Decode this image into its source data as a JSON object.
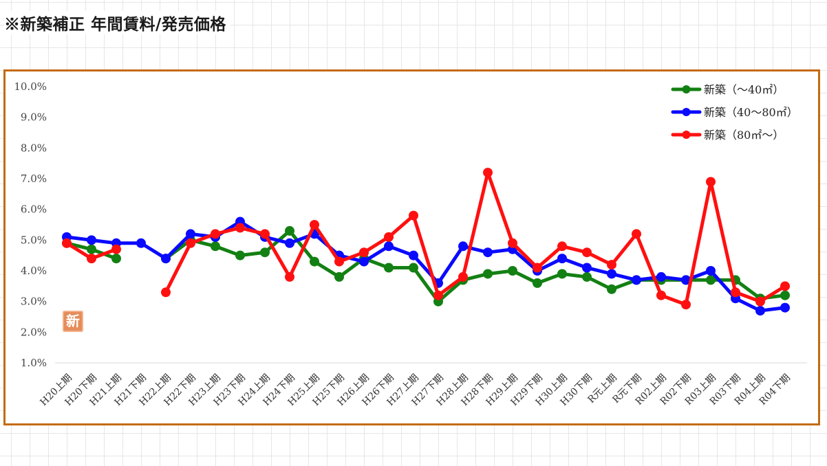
{
  "page": {
    "title": "※新築補正 年間賃料/発売価格"
  },
  "stamp": {
    "text": "新"
  },
  "chart_data": {
    "type": "line",
    "title": "",
    "xlabel": "",
    "ylabel": "",
    "ylim": [
      1.0,
      10.0
    ],
    "y_ticks": [
      "10.0%",
      "9.0%",
      "8.0%",
      "7.0%",
      "6.0%",
      "5.0%",
      "4.0%",
      "3.0%",
      "2.0%",
      "1.0%"
    ],
    "legend_position": "top-right",
    "grid": false,
    "categories": [
      "H20上期",
      "H20下期",
      "H21上期",
      "H21下期",
      "H22上期",
      "H22下期",
      "H23上期",
      "H23下期",
      "H24上期",
      "H24下期",
      "H25上期",
      "H25下期",
      "H26上期",
      "H26下期",
      "H27上期",
      "H27下期",
      "H28上期",
      "H28下期",
      "H29上期",
      "H29下期",
      "H30上期",
      "H30下期",
      "R元上期",
      "R元下期",
      "R02上期",
      "R02下期",
      "R03上期",
      "R03下期",
      "R04上期",
      "R04下期"
    ],
    "series": [
      {
        "name": "新築（～40㎡）",
        "color": "#138013",
        "values": [
          4.9,
          4.7,
          4.4,
          null,
          4.4,
          5.0,
          4.8,
          4.5,
          4.6,
          5.3,
          4.3,
          3.8,
          4.4,
          4.1,
          4.1,
          3.0,
          3.7,
          3.9,
          4.0,
          3.6,
          3.9,
          3.8,
          3.4,
          3.7,
          3.7,
          3.7,
          3.7,
          3.7,
          3.1,
          3.2
        ]
      },
      {
        "name": "新築（40～80㎡）",
        "color": "#0a0aff",
        "values": [
          5.1,
          5.0,
          4.9,
          4.9,
          4.4,
          5.2,
          5.1,
          5.6,
          5.1,
          4.9,
          5.2,
          4.5,
          4.3,
          4.8,
          4.5,
          3.6,
          4.8,
          4.6,
          4.7,
          4.0,
          4.4,
          4.1,
          3.9,
          3.7,
          3.8,
          3.7,
          4.0,
          3.1,
          2.7,
          2.8
        ]
      },
      {
        "name": "新築（80㎡～）",
        "color": "#ff1010",
        "values": [
          4.9,
          4.4,
          4.7,
          null,
          3.3,
          4.9,
          5.2,
          5.4,
          5.2,
          3.8,
          5.5,
          4.3,
          4.6,
          5.1,
          5.8,
          3.2,
          3.8,
          7.2,
          4.9,
          4.1,
          4.8,
          4.6,
          4.2,
          5.2,
          3.2,
          2.9,
          6.9,
          3.3,
          3.0,
          3.5
        ]
      }
    ]
  }
}
